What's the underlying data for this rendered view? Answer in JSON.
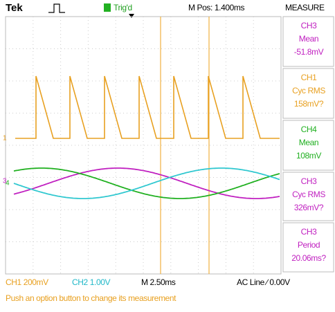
{
  "header": {
    "brand": "Tek",
    "trigger_status": "Trig'd",
    "position": "M Pos: 1.400ms",
    "menu_title": "MEASURE"
  },
  "measurements": [
    {
      "channel": "CH3",
      "type": "Mean",
      "value": "-51.8mV"
    },
    {
      "channel": "CH1",
      "type": "Cyc RMS",
      "value": "158mV?"
    },
    {
      "channel": "CH4",
      "type": "Mean",
      "value": "108mV"
    },
    {
      "channel": "CH3",
      "type": "Cyc RMS",
      "value": "326mV?"
    },
    {
      "channel": "CH3",
      "type": "Period",
      "value": "20.06ms?"
    }
  ],
  "markers": [
    "1",
    "3",
    "4"
  ],
  "footer": {
    "ch1": "CH1  200mV",
    "ch2": "CH2  1.00V",
    "timebase": "M 2.50ms",
    "trigger": "AC Line ∕ 0.00V",
    "message": "Push an option button to change its measurement"
  }
}
